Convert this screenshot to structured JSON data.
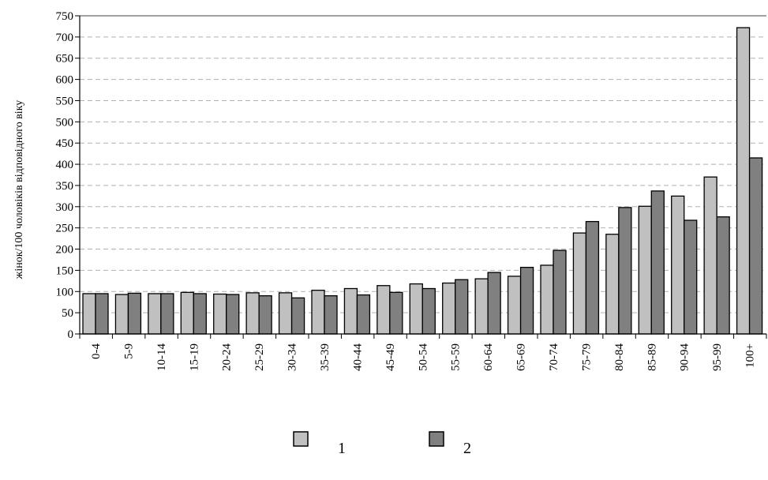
{
  "chart_data": {
    "type": "bar",
    "ylabel": "жінок/100 чоловіків відповідного віку",
    "ylim": [
      0,
      750
    ],
    "ytick_step": 50,
    "grid": true,
    "legend_position": "bottom",
    "categories": [
      "0-4",
      "5-9",
      "10-14",
      "15-19",
      "20-24",
      "25-29",
      "30-34",
      "35-39",
      "40-44",
      "45-49",
      "50-54",
      "55-59",
      "60-64",
      "65-69",
      "70-74",
      "75-79",
      "80-84",
      "85-89",
      "90-94",
      "95-99",
      "100+"
    ],
    "series": [
      {
        "name": "1",
        "color": "#c0c0c0",
        "values": [
          95,
          93,
          95,
          98,
          94,
          97,
          97,
          103,
          107,
          114,
          118,
          120,
          130,
          136,
          162,
          238,
          235,
          301,
          325,
          370,
          722
        ]
      },
      {
        "name": "2",
        "color": "#808080",
        "values": [
          95,
          96,
          95,
          95,
          93,
          90,
          85,
          90,
          92,
          98,
          107,
          128,
          145,
          157,
          197,
          265,
          298,
          337,
          268,
          276,
          415
        ]
      }
    ]
  }
}
